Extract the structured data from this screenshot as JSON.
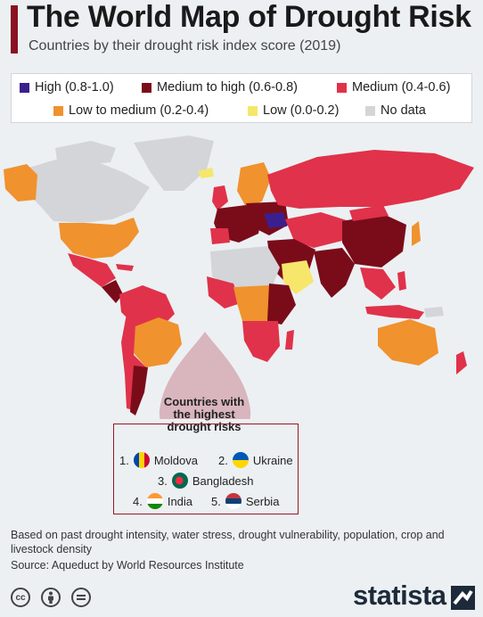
{
  "header": {
    "title": "The World Map of Drought Risk",
    "subtitle": "Countries by their drought risk index score (2019)"
  },
  "legend": {
    "items": [
      {
        "label": "High (0.8-1.0)",
        "color": "#3c1f8e"
      },
      {
        "label": "Medium to high (0.6-0.8)",
        "color": "#7a0c1a"
      },
      {
        "label": "Medium (0.4-0.6)",
        "color": "#e0324a"
      },
      {
        "label": "Low to medium (0.2-0.4)",
        "color": "#f0922d"
      },
      {
        "label": "Low (0.0-0.2)",
        "color": "#f6e66b"
      },
      {
        "label": "No data",
        "color": "#d3d5d8"
      }
    ]
  },
  "callout": {
    "heading": "Countries with the highest drought risks",
    "ranks": [
      {
        "rank": "1.",
        "country": "Moldova",
        "flag": "moldova-flag"
      },
      {
        "rank": "2.",
        "country": "Ukraine",
        "flag": "ukraine-flag"
      },
      {
        "rank": "3.",
        "country": "Bangladesh",
        "flag": "bangladesh-flag"
      },
      {
        "rank": "4.",
        "country": "India",
        "flag": "india-flag"
      },
      {
        "rank": "5.",
        "country": "Serbia",
        "flag": "serbia-flag"
      }
    ]
  },
  "footer": {
    "note": "Based on past drought intensity, water stress, drought vulnerability, population, crop and livestock density",
    "source": "Source: Aqueduct by World Resources Institute",
    "brand": "statista"
  }
}
